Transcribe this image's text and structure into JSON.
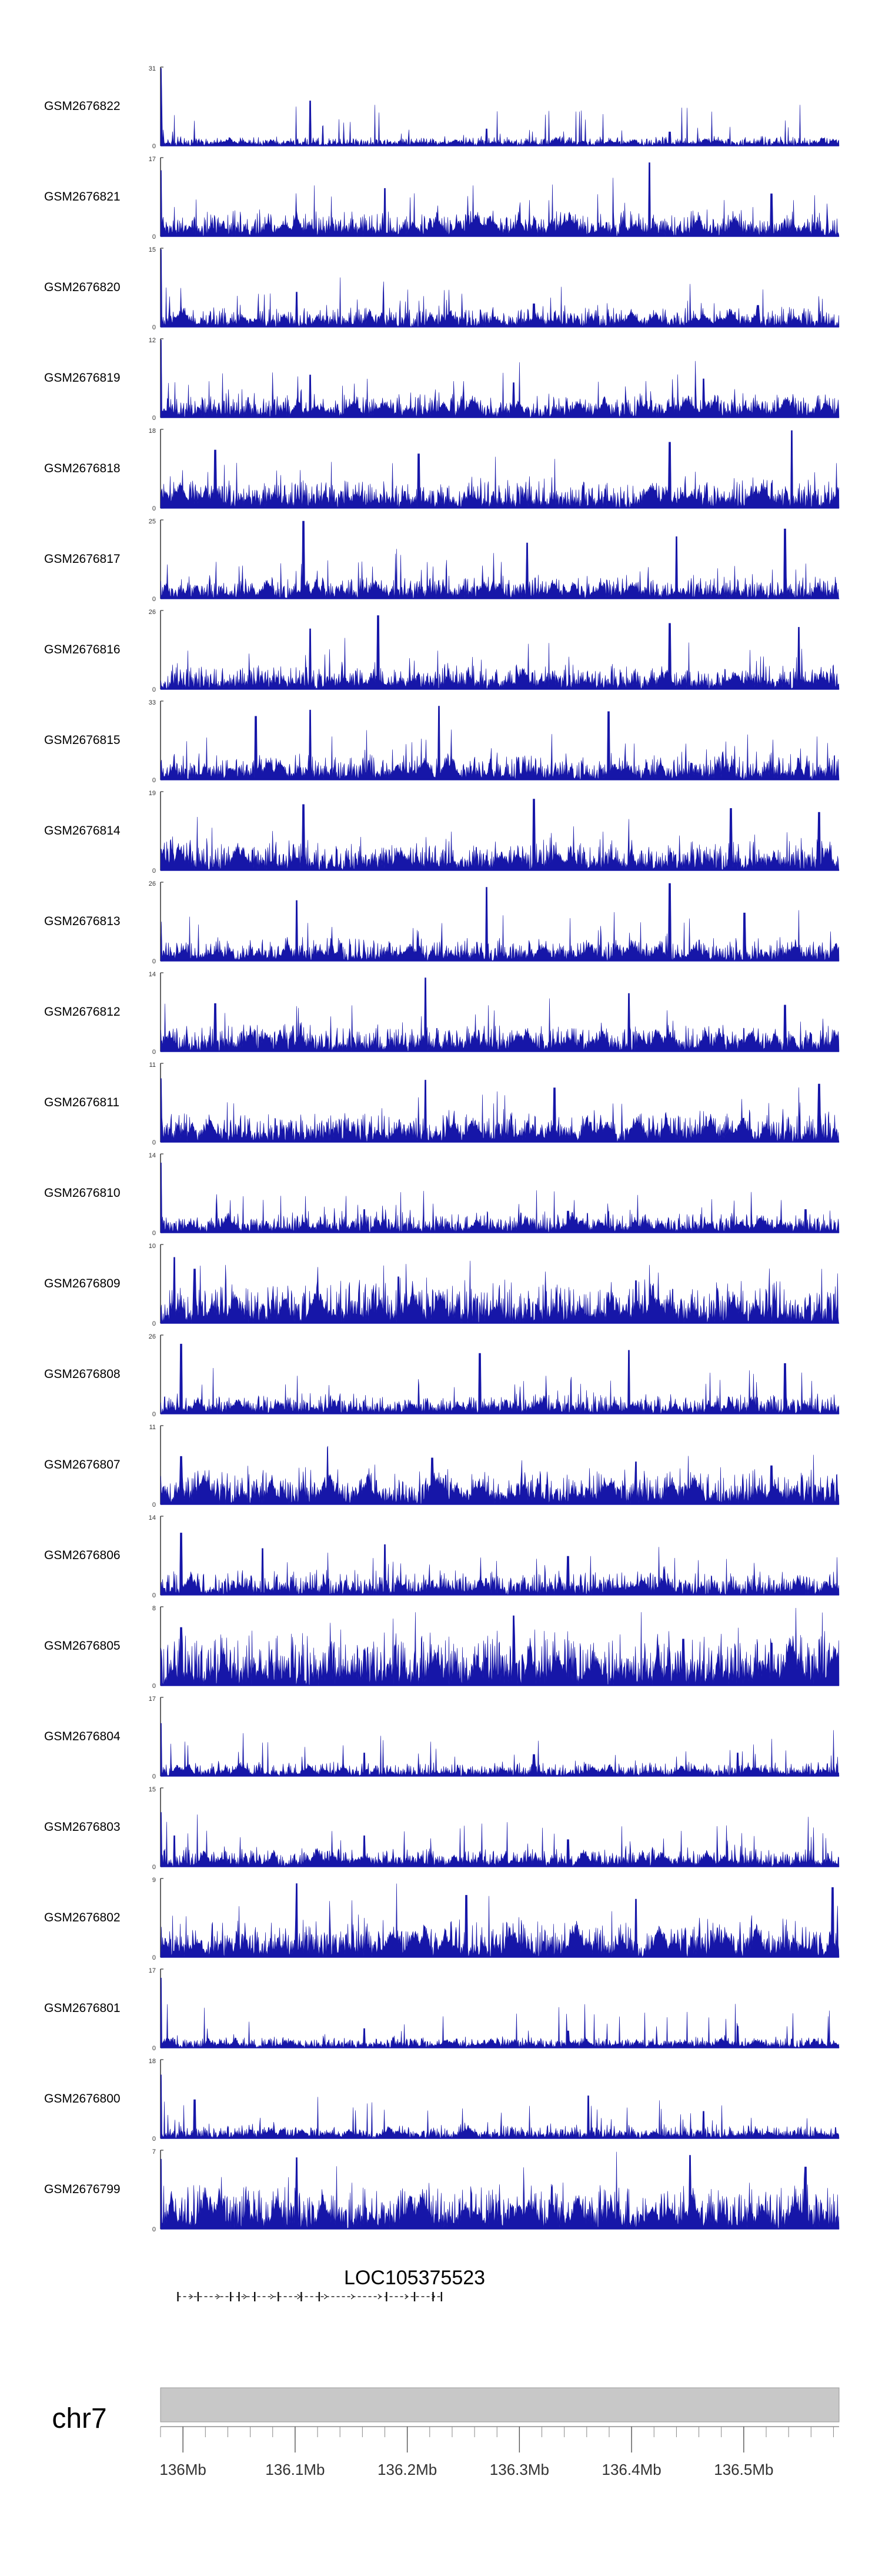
{
  "chart_data": {
    "type": "area",
    "tracks": [
      {
        "name": "GSM2676822",
        "ymax": "31",
        "ymin": "0",
        "peak": 31,
        "base": 3.0,
        "seed": 22,
        "spikes": [
          [
            0.0,
            1.0
          ],
          [
            0.22,
            0.58
          ],
          [
            0.48,
            0.22
          ],
          [
            0.75,
            0.18
          ]
        ]
      },
      {
        "name": "GSM2676821",
        "ymax": "17",
        "ymin": "0",
        "peak": 17,
        "base": 4.5,
        "seed": 21,
        "spikes": [
          [
            0.0,
            0.85
          ],
          [
            0.33,
            0.62
          ],
          [
            0.72,
            0.95
          ],
          [
            0.9,
            0.55
          ]
        ]
      },
      {
        "name": "GSM2676820",
        "ymax": "15",
        "ymin": "0",
        "peak": 15,
        "base": 3.2,
        "seed": 20,
        "spikes": [
          [
            0.0,
            1.0
          ],
          [
            0.2,
            0.45
          ],
          [
            0.55,
            0.3
          ],
          [
            0.88,
            0.28
          ]
        ]
      },
      {
        "name": "GSM2676819",
        "ymax": "12",
        "ymin": "0",
        "peak": 12,
        "base": 3.0,
        "seed": 19,
        "spikes": [
          [
            0.0,
            1.0
          ],
          [
            0.22,
            0.55
          ],
          [
            0.52,
            0.45
          ],
          [
            0.8,
            0.5
          ]
        ]
      },
      {
        "name": "GSM2676818",
        "ymax": "18",
        "ymin": "0",
        "peak": 18,
        "base": 5.5,
        "seed": 18,
        "spikes": [
          [
            0.08,
            0.75
          ],
          [
            0.38,
            0.7
          ],
          [
            0.75,
            0.85
          ],
          [
            0.93,
            1.0
          ]
        ]
      },
      {
        "name": "GSM2676817",
        "ymax": "25",
        "ymin": "0",
        "peak": 25,
        "base": 6.0,
        "seed": 17,
        "spikes": [
          [
            0.21,
            1.0
          ],
          [
            0.54,
            0.72
          ],
          [
            0.76,
            0.8
          ],
          [
            0.92,
            0.9
          ]
        ]
      },
      {
        "name": "GSM2676816",
        "ymax": "26",
        "ymin": "0",
        "peak": 26,
        "base": 6.5,
        "seed": 16,
        "spikes": [
          [
            0.22,
            0.78
          ],
          [
            0.32,
            0.95
          ],
          [
            0.75,
            0.85
          ],
          [
            0.94,
            0.8
          ]
        ]
      },
      {
        "name": "GSM2676815",
        "ymax": "33",
        "ymin": "0",
        "peak": 33,
        "base": 9.0,
        "seed": 15,
        "spikes": [
          [
            0.14,
            0.82
          ],
          [
            0.22,
            0.9
          ],
          [
            0.41,
            0.95
          ],
          [
            0.66,
            0.88
          ]
        ]
      },
      {
        "name": "GSM2676814",
        "ymax": "19",
        "ymin": "0",
        "peak": 19,
        "base": 6.0,
        "seed": 14,
        "spikes": [
          [
            0.21,
            0.85
          ],
          [
            0.55,
            0.92
          ],
          [
            0.84,
            0.8
          ],
          [
            0.97,
            0.75
          ]
        ]
      },
      {
        "name": "GSM2676813",
        "ymax": "26",
        "ymin": "0",
        "peak": 26,
        "base": 6.0,
        "seed": 13,
        "spikes": [
          [
            0.2,
            0.78
          ],
          [
            0.48,
            0.95
          ],
          [
            0.75,
            1.0
          ],
          [
            0.86,
            0.62
          ]
        ]
      },
      {
        "name": "GSM2676812",
        "ymax": "14",
        "ymin": "0",
        "peak": 14,
        "base": 4.0,
        "seed": 12,
        "spikes": [
          [
            0.08,
            0.62
          ],
          [
            0.39,
            0.95
          ],
          [
            0.69,
            0.75
          ],
          [
            0.92,
            0.6
          ]
        ]
      },
      {
        "name": "GSM2676811",
        "ymax": "11",
        "ymin": "0",
        "peak": 11,
        "base": 3.5,
        "seed": 11,
        "spikes": [
          [
            0.0,
            0.82
          ],
          [
            0.39,
            0.8
          ],
          [
            0.58,
            0.7
          ],
          [
            0.97,
            0.75
          ]
        ]
      },
      {
        "name": "GSM2676810",
        "ymax": "14",
        "ymin": "0",
        "peak": 14,
        "base": 3.0,
        "seed": 10,
        "spikes": [
          [
            0.0,
            0.9
          ],
          [
            0.3,
            0.3
          ],
          [
            0.6,
            0.28
          ],
          [
            0.95,
            0.3
          ]
        ]
      },
      {
        "name": "GSM2676809",
        "ymax": "10",
        "ymin": "0",
        "peak": 10,
        "base": 4.5,
        "seed": 9,
        "spikes": [
          [
            0.02,
            0.85
          ],
          [
            0.05,
            0.7
          ],
          [
            0.35,
            0.6
          ],
          [
            0.7,
            0.55
          ]
        ]
      },
      {
        "name": "GSM2676808",
        "ymax": "26",
        "ymin": "0",
        "peak": 26,
        "base": 5.5,
        "seed": 8,
        "spikes": [
          [
            0.03,
            0.9
          ],
          [
            0.47,
            0.78
          ],
          [
            0.69,
            0.82
          ],
          [
            0.92,
            0.65
          ]
        ]
      },
      {
        "name": "GSM2676807",
        "ymax": "11",
        "ymin": "0",
        "peak": 11,
        "base": 4.0,
        "seed": 7,
        "spikes": [
          [
            0.03,
            0.62
          ],
          [
            0.4,
            0.6
          ],
          [
            0.7,
            0.55
          ],
          [
            0.9,
            0.5
          ]
        ]
      },
      {
        "name": "GSM2676806",
        "ymax": "14",
        "ymin": "0",
        "peak": 14,
        "base": 3.5,
        "seed": 6,
        "spikes": [
          [
            0.03,
            0.8
          ],
          [
            0.15,
            0.6
          ],
          [
            0.33,
            0.65
          ],
          [
            0.6,
            0.5
          ]
        ]
      },
      {
        "name": "GSM2676805",
        "ymax": "8",
        "ymin": "0",
        "peak": 8,
        "base": 4.5,
        "seed": 5,
        "spikes": [
          [
            0.03,
            0.75
          ],
          [
            0.52,
            0.9
          ],
          [
            0.77,
            0.6
          ],
          [
            0.9,
            0.55
          ]
        ]
      },
      {
        "name": "GSM2676804",
        "ymax": "17",
        "ymin": "0",
        "peak": 17,
        "base": 2.5,
        "seed": 4,
        "spikes": [
          [
            0.0,
            0.68
          ],
          [
            0.3,
            0.3
          ],
          [
            0.55,
            0.28
          ],
          [
            0.85,
            0.3
          ]
        ]
      },
      {
        "name": "GSM2676803",
        "ymax": "15",
        "ymin": "0",
        "peak": 15,
        "base": 3.0,
        "seed": 3,
        "spikes": [
          [
            0.0,
            0.7
          ],
          [
            0.02,
            0.4
          ],
          [
            0.3,
            0.4
          ],
          [
            0.6,
            0.35
          ]
        ]
      },
      {
        "name": "GSM2676802",
        "ymax": "9",
        "ymin": "0",
        "peak": 9,
        "base": 3.5,
        "seed": 2,
        "spikes": [
          [
            0.2,
            0.95
          ],
          [
            0.45,
            0.8
          ],
          [
            0.7,
            0.75
          ],
          [
            0.99,
            0.9
          ]
        ]
      },
      {
        "name": "GSM2676801",
        "ymax": "17",
        "ymin": "0",
        "peak": 17,
        "base": 2.0,
        "seed": 1,
        "spikes": [
          [
            0.0,
            0.9
          ],
          [
            0.3,
            0.25
          ],
          [
            0.6,
            0.22
          ],
          [
            0.85,
            0.28
          ]
        ]
      },
      {
        "name": "GSM2676800",
        "ymax": "18",
        "ymin": "0",
        "peak": 18,
        "base": 2.5,
        "seed": 30,
        "spikes": [
          [
            0.0,
            0.82
          ],
          [
            0.05,
            0.5
          ],
          [
            0.63,
            0.55
          ],
          [
            0.8,
            0.35
          ]
        ]
      },
      {
        "name": "GSM2676799",
        "ymax": "7",
        "ymin": "0",
        "peak": 7,
        "base": 3.2,
        "seed": 31,
        "spikes": [
          [
            0.0,
            0.9
          ],
          [
            0.2,
            0.92
          ],
          [
            0.78,
            0.95
          ],
          [
            0.95,
            0.8
          ]
        ]
      }
    ],
    "gene": {
      "label": "LOC105375523",
      "start": 135.9955,
      "end": 136.2305,
      "exons": [
        135.9955,
        136.0135,
        136.0425,
        136.05,
        136.064,
        136.085,
        136.1055,
        136.1215,
        136.1815,
        136.2065,
        136.223,
        136.2305
      ]
    },
    "ideogram": {
      "chromosome": "chr7",
      "xmin": 135.98,
      "xmax": 136.585,
      "major_ticks": [
        136.0,
        136.1,
        136.2,
        136.3,
        136.4,
        136.5
      ],
      "tick_labels": [
        "136Mb",
        "136.1Mb",
        "136.2Mb",
        "136.3Mb",
        "136.4Mb",
        "136.5Mb"
      ],
      "minor_step": 0.02
    },
    "colors": {
      "signal": "#1616a8",
      "axis": "#333333",
      "ideogram": "#c8c8c8"
    }
  }
}
